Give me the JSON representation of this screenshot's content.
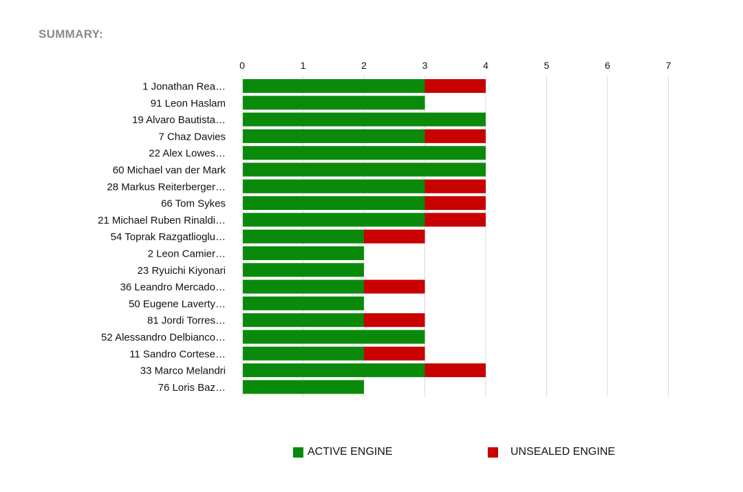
{
  "summary_title": "SUMMARY:",
  "colors": {
    "active": "#0a8a0a",
    "unsealed": "#c80000",
    "grid": "#d9d9d9"
  },
  "chart_data": {
    "type": "bar",
    "orientation": "horizontal",
    "stacked": true,
    "title": "SUMMARY:",
    "xlim": [
      0,
      7
    ],
    "x_ticks": [
      0,
      1,
      2,
      3,
      4,
      5,
      6,
      7
    ],
    "x_axis_position": "top",
    "grid": true,
    "legend_position": "bottom",
    "categories": [
      "1 Jonathan Rea…",
      "91 Leon Haslam",
      "19 Alvaro Bautista…",
      "7 Chaz Davies",
      "22 Alex Lowes…",
      "60 Michael van der Mark",
      "28 Markus Reiterberger…",
      "66 Tom Sykes",
      "21 Michael Ruben Rinaldi…",
      "54 Toprak Razgatlioglu…",
      "2 Leon Camier…",
      "23 Ryuichi Kiyonari",
      "36 Leandro Mercado…",
      "50 Eugene Laverty…",
      "81 Jordi Torres…",
      "52 Alessandro Delbianco…",
      "11 Sandro Cortese…",
      "33 Marco Melandri",
      "76 Loris Baz…"
    ],
    "series": [
      {
        "name": "ACTIVE ENGINE",
        "color": "#0a8a0a",
        "values": [
          3,
          3,
          4,
          3,
          4,
          4,
          3,
          3,
          3,
          2,
          2,
          2,
          2,
          2,
          2,
          3,
          2,
          3,
          2
        ]
      },
      {
        "name": "UNSEALED ENGINE",
        "color": "#c80000",
        "values": [
          1,
          0,
          0,
          1,
          0,
          0,
          1,
          1,
          1,
          1,
          0,
          0,
          1,
          0,
          1,
          0,
          1,
          1,
          0
        ]
      }
    ]
  }
}
